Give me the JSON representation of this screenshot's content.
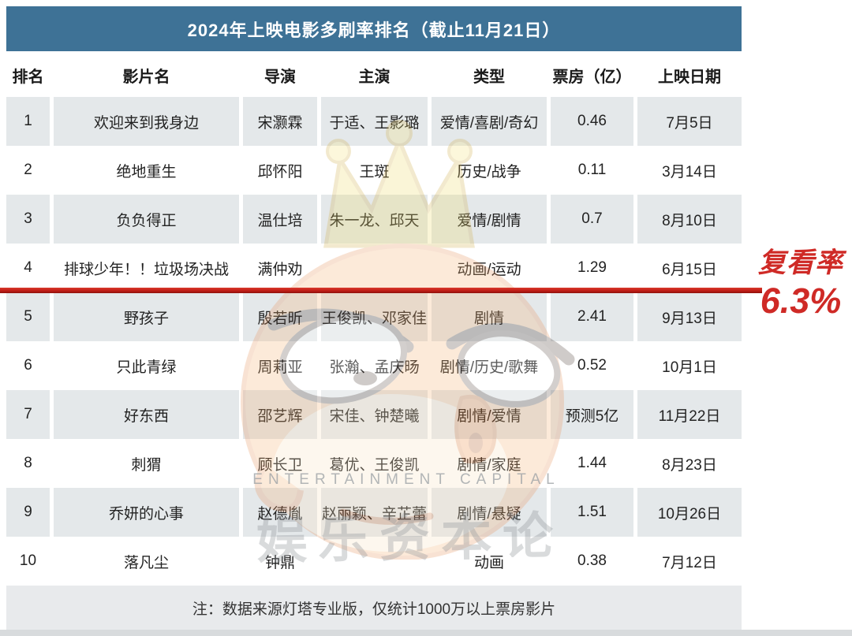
{
  "chart_data": {
    "type": "table",
    "title": "2024年上映电影多刷率排名（截止11月21日）",
    "columns": [
      "排名",
      "影片名",
      "导演",
      "主演",
      "类型",
      "票房（亿）",
      "上映日期"
    ],
    "rows": [
      [
        "1",
        "欢迎来到我身边",
        "宋灏霖",
        "于适、王影璐",
        "爱情/喜剧/奇幻",
        "0.46",
        "7月5日"
      ],
      [
        "2",
        "绝地重生",
        "邱怀阳",
        "王斑",
        "历史/战争",
        "0.11",
        "3月14日"
      ],
      [
        "3",
        "负负得正",
        "温仕培",
        "朱一龙、邱天",
        "爱情/剧情",
        "0.7",
        "8月10日"
      ],
      [
        "4",
        "排球少年！！垃圾场决战",
        "满仲劝",
        "",
        "动画/运动",
        "1.29",
        "6月15日"
      ],
      [
        "5",
        "野孩子",
        "殷若昕",
        "王俊凯、邓家佳",
        "剧情",
        "2.41",
        "9月13日"
      ],
      [
        "6",
        "只此青绿",
        "周莉亚",
        "张瀚、孟庆旸",
        "剧情/历史/歌舞",
        "0.52",
        "10月1日"
      ],
      [
        "7",
        "好东西",
        "邵艺辉",
        "宋佳、钟楚曦",
        "剧情/爱情",
        "预测5亿",
        "11月22日"
      ],
      [
        "8",
        "刺猬",
        "顾长卫",
        "葛优、王俊凯",
        "剧情/家庭",
        "1.44",
        "8月23日"
      ],
      [
        "9",
        "乔妍的心事",
        "赵德胤",
        "赵丽颖、辛芷蕾",
        "剧情/悬疑",
        "1.51",
        "10月26日"
      ],
      [
        "10",
        "落凡尘",
        "钟鼎",
        "",
        "动画",
        "0.38",
        "7月12日"
      ]
    ],
    "annotation": {
      "label": "复看率",
      "value": "6.3%",
      "line_after_row": 4
    },
    "footnote": "注：数据来源灯塔专业版，仅统计1000万以上票房影片",
    "legend_position": "none",
    "grid": "alternating-row-shading"
  },
  "watermark": {
    "line_en": "ENTERTAINMENT CAPITAL",
    "line_cn": "娱乐资本论"
  },
  "colors": {
    "title_bar_blue": "#3e7296",
    "alt_row_gray": "#e4e8ea",
    "footer_gray": "#e8eaec",
    "annotation_red": "#cf2a26"
  }
}
